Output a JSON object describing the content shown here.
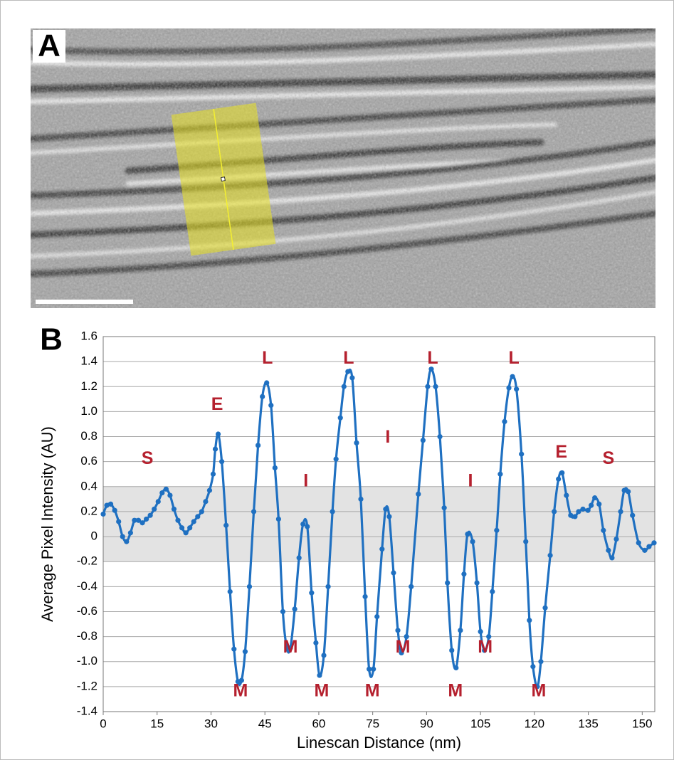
{
  "image_panel": {
    "label": "A"
  },
  "chart_data": {
    "type": "line",
    "panel_label": "B",
    "x_label": "Linescan Distance (nm)",
    "y_label": "Average Pixel Intensity (AU)",
    "xlim": [
      0,
      153.5
    ],
    "xticks": [
      0,
      15,
      30,
      45,
      60,
      75,
      90,
      105,
      120,
      135,
      150
    ],
    "ylim": [
      -1.4,
      1.6
    ],
    "yticks": [
      {
        "value": -1.4,
        "label": "-1.4"
      },
      -1.2,
      {
        "value": -1,
        "label": "-1.0"
      },
      -0.8,
      -0.6,
      -0.4,
      -0.2,
      0,
      0.2,
      0.4,
      0.6,
      0.8,
      {
        "value": 1,
        "label": "1.0"
      },
      1.2,
      1.4,
      1.6
    ],
    "grid": true,
    "band": [
      -0.2,
      0.4
    ],
    "band_color": "#e3e3e3",
    "series": [
      {
        "color": "#1f70c1",
        "x": [
          0,
          1.0,
          2.1,
          3.2,
          4.3,
          5.4,
          6.5,
          7.6,
          8.7,
          9.8,
          10.9,
          12.0,
          13.1,
          14.2,
          15.3,
          16.4,
          17.5,
          18.6,
          19.7,
          20.8,
          21.9,
          23.0,
          24.1,
          25.2,
          26.3,
          27.4,
          28.5,
          29.6,
          30.6,
          31.2,
          32.0,
          33.0,
          34.2,
          35.3,
          36.4,
          37.5,
          38.5,
          39.5,
          40.7,
          41.9,
          43.1,
          44.3,
          45.5,
          46.7,
          47.8,
          48.8,
          50.0,
          51.1,
          52.1,
          53.3,
          54.5,
          55.6,
          56.8,
          58.0,
          59.2,
          60.2,
          61.4,
          62.6,
          63.8,
          64.8,
          66.0,
          67.0,
          68.1,
          69.3,
          70.5,
          71.7,
          72.9,
          74.0,
          75.2,
          76.2,
          77.6,
          78.6,
          79.6,
          80.8,
          82.0,
          83.0,
          84.4,
          85.7,
          87.7,
          89.0,
          90.3,
          91.3,
          92.5,
          93.7,
          94.9,
          95.8,
          97.0,
          98.2,
          99.4,
          100.4,
          101.4,
          102.8,
          104.0,
          105.0,
          106.1,
          107.3,
          108.3,
          109.5,
          110.5,
          111.7,
          112.9,
          113.9,
          115.0,
          116.4,
          117.6,
          118.6,
          119.6,
          120.8,
          121.8,
          123.0,
          124.4,
          125.5,
          126.7,
          127.7,
          128.9,
          130.1,
          131.3,
          132.3,
          133.5,
          134.9,
          135.8,
          136.8,
          138.0,
          139.2,
          140.6,
          141.6,
          142.8,
          144.0,
          145.0,
          146.1,
          147.3,
          149.0,
          150.7,
          151.9,
          153.3
        ],
        "values": [
          0.18,
          0.25,
          0.26,
          0.21,
          0.12,
          0.0,
          -0.04,
          0.03,
          0.13,
          0.13,
          0.11,
          0.14,
          0.17,
          0.22,
          0.28,
          0.35,
          0.38,
          0.33,
          0.22,
          0.13,
          0.07,
          0.03,
          0.07,
          0.12,
          0.16,
          0.2,
          0.28,
          0.37,
          0.5,
          0.7,
          0.82,
          0.6,
          0.09,
          -0.44,
          -0.9,
          -1.16,
          -1.15,
          -0.92,
          -0.4,
          0.2,
          0.73,
          1.12,
          1.23,
          1.05,
          0.55,
          0.14,
          -0.6,
          -0.89,
          -0.89,
          -0.58,
          -0.17,
          0.1,
          0.08,
          -0.45,
          -0.85,
          -1.11,
          -0.95,
          -0.4,
          0.2,
          0.62,
          0.95,
          1.2,
          1.32,
          1.27,
          0.75,
          0.3,
          -0.48,
          -1.06,
          -1.06,
          -0.64,
          -0.1,
          0.22,
          0.16,
          -0.29,
          -0.75,
          -0.93,
          -0.8,
          -0.4,
          0.34,
          0.77,
          1.2,
          1.34,
          1.2,
          0.8,
          0.23,
          -0.37,
          -0.91,
          -1.05,
          -0.75,
          -0.3,
          0.02,
          -0.04,
          -0.37,
          -0.76,
          -0.91,
          -0.8,
          -0.44,
          0.05,
          0.5,
          0.92,
          1.19,
          1.28,
          1.18,
          0.66,
          -0.04,
          -0.67,
          -1.04,
          -1.2,
          -1.0,
          -0.57,
          -0.15,
          0.2,
          0.46,
          0.51,
          0.33,
          0.17,
          0.16,
          0.2,
          0.22,
          0.21,
          0.25,
          0.31,
          0.26,
          0.05,
          -0.11,
          -0.17,
          -0.02,
          0.2,
          0.37,
          0.36,
          0.17,
          -0.05,
          -0.11,
          -0.08,
          -0.05
        ]
      }
    ],
    "annotation_color": "#b5202e",
    "annotations": [
      {
        "text": "S",
        "x": 12.3,
        "y": 0.62
      },
      {
        "text": "E",
        "x": 31.7,
        "y": 1.05
      },
      {
        "text": "L",
        "x": 45.7,
        "y": 1.42
      },
      {
        "text": "L",
        "x": 68.3,
        "y": 1.42
      },
      {
        "text": "L",
        "x": 91.7,
        "y": 1.42
      },
      {
        "text": "L",
        "x": 114.3,
        "y": 1.42
      },
      {
        "text": "I",
        "x": 56.4,
        "y": 0.44
      },
      {
        "text": "I",
        "x": 79.2,
        "y": 0.79
      },
      {
        "text": "I",
        "x": 102.2,
        "y": 0.44
      },
      {
        "text": "E",
        "x": 127.5,
        "y": 0.67
      },
      {
        "text": "S",
        "x": 140.6,
        "y": 0.62
      },
      {
        "text": "M",
        "x": 38.2,
        "y": -1.24
      },
      {
        "text": "M",
        "x": 52.1,
        "y": -0.89
      },
      {
        "text": "M",
        "x": 60.8,
        "y": -1.24
      },
      {
        "text": "M",
        "x": 74.9,
        "y": -1.24
      },
      {
        "text": "M",
        "x": 83.4,
        "y": -0.89
      },
      {
        "text": "M",
        "x": 98.0,
        "y": -1.24
      },
      {
        "text": "M",
        "x": 106.3,
        "y": -0.89
      },
      {
        "text": "M",
        "x": 121.2,
        "y": -1.24
      }
    ]
  }
}
